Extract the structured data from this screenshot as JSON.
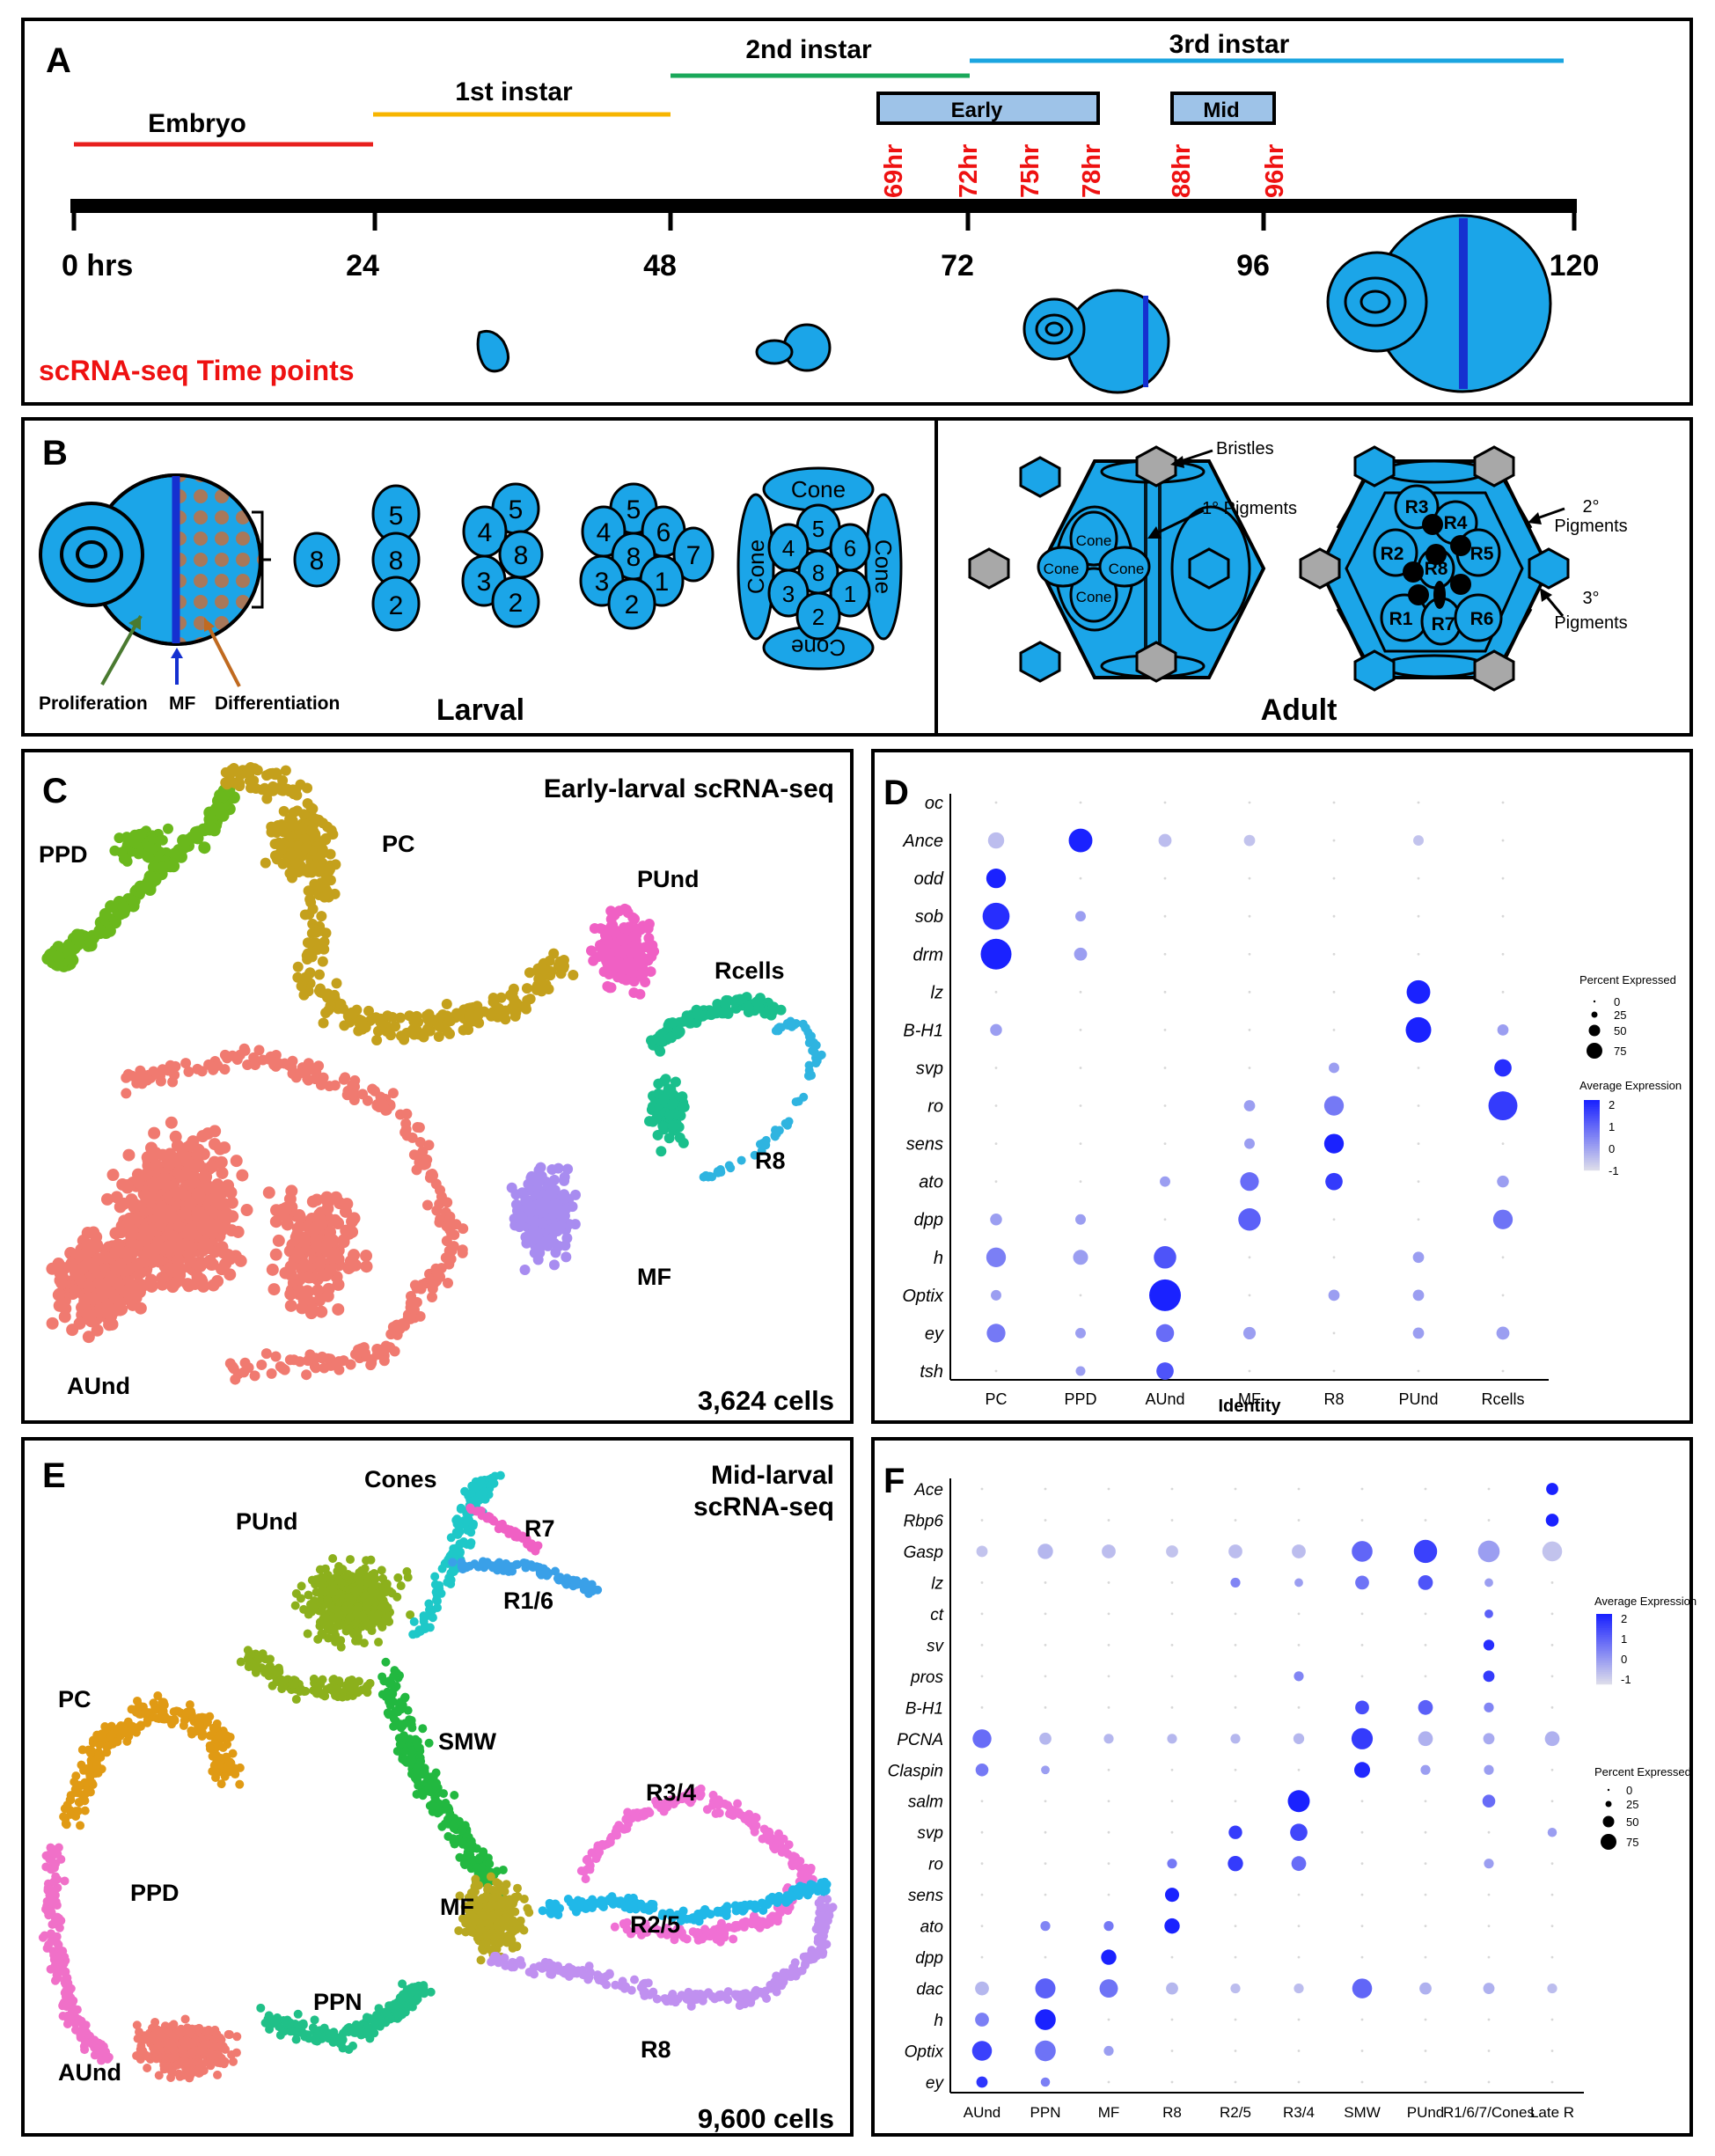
{
  "colors": {
    "embryo": "#e8201e",
    "instar1": "#f7b500",
    "instar2": "#1aa85a",
    "instar3": "#1ba5e0",
    "cell": "#1ba5e8",
    "mf": "#1530d0",
    "red_label": "#ee1111",
    "timebox": "#9ec3e8",
    "pigment_grey": "#a8a8a8",
    "dot_hi": "#1a22ff",
    "dot_lo": "#dcdcea",
    "AUnd": "#f07a70",
    "PC_early": "#c4a01c",
    "PPD_early": "#6ab81c",
    "PUnd_early": "#f060c4",
    "Rcells": "#1abf8c",
    "R8_early": "#2fb4e0",
    "MF_early": "#a88cf0",
    "PUnd_mid": "#8cb01c",
    "Cones": "#1ec8c8",
    "R7": "#f060c4",
    "R16": "#3aa0e8",
    "PC_mid": "#e09a14",
    "SMW": "#22b840",
    "R34": "#f070d4",
    "R25": "#20b8e8",
    "MF_mid": "#b8a820",
    "PPN": "#20c088",
    "R8_mid": "#c090f0",
    "PPD_mid": "#f070c8"
  },
  "panelA": {
    "letter": "A",
    "stages": [
      {
        "label": "Embryo",
        "color_key": "embryo"
      },
      {
        "label": "1st instar",
        "color_key": "instar1"
      },
      {
        "label": "2nd instar",
        "color_key": "instar2"
      },
      {
        "label": "3rd instar",
        "color_key": "instar3"
      }
    ],
    "boxes": [
      "Early",
      "Mid"
    ],
    "timepoints": [
      "69hr",
      "72hr",
      "75hr",
      "78hr",
      "88hr",
      "96hr"
    ],
    "ticks": [
      "0 hrs",
      "24",
      "48",
      "72",
      "96",
      "120"
    ],
    "note": "scRNA-seq Time points"
  },
  "panelB": {
    "letter": "B",
    "larval_labels": {
      "proliferation": "Proliferation",
      "mf": "MF",
      "differentiation": "Differentiation",
      "title": "Larval"
    },
    "adult_labels": {
      "bristles": "Bristles",
      "pig1": "1° Pigments",
      "pig2a": "2°",
      "pig2b": "Pigments",
      "pig3a": "3°",
      "pig3b": "Pigments",
      "title": "Adult"
    },
    "cells": {
      "c8": "8",
      "c5": "5",
      "c2": "2",
      "c4": "4",
      "c3": "3",
      "c6": "6",
      "c7": "7",
      "c1": "1",
      "cone": "Cone"
    },
    "rcells": [
      "R1",
      "R2",
      "R3",
      "R4",
      "R5",
      "R6",
      "R7",
      "R8"
    ]
  },
  "panelC": {
    "letter": "C",
    "title": "Early-larval scRNA-seq",
    "count": "3,624 cells",
    "clusters": {
      "PPD": "PPD",
      "PC": "PC",
      "PUnd": "PUnd",
      "Rcells": "Rcells",
      "R8": "R8",
      "MF": "MF",
      "AUnd": "AUnd"
    }
  },
  "panelD": {
    "letter": "D",
    "genes": [
      "oc",
      "Ance",
      "odd",
      "sob",
      "drm",
      "lz",
      "B-H1",
      "svp",
      "ro",
      "sens",
      "ato",
      "dpp",
      "h",
      "Optix",
      "ey",
      "tsh"
    ],
    "identities": [
      "PC",
      "PPD",
      "AUnd",
      "MF",
      "R8",
      "PUnd",
      "Rcells"
    ],
    "xlabel": "Identity",
    "legend_pct_title": "Percent Expressed",
    "legend_pct": [
      "0",
      "25",
      "50",
      "75"
    ],
    "legend_avg_title": "Average Expression",
    "legend_avg": [
      "2",
      "1",
      "0",
      "-1"
    ],
    "dots": [
      [
        0,
        0,
        0,
        0,
        0,
        0,
        0
      ],
      [
        15,
        40,
        8,
        5,
        0,
        4,
        0
      ],
      [
        25,
        0,
        0,
        0,
        0,
        0,
        0
      ],
      [
        55,
        4,
        0,
        0,
        0,
        0,
        0
      ],
      [
        75,
        8,
        0,
        0,
        0,
        0,
        0
      ],
      [
        0,
        0,
        0,
        0,
        0,
        40,
        0
      ],
      [
        6,
        0,
        0,
        0,
        0,
        48,
        5
      ],
      [
        0,
        0,
        0,
        0,
        4,
        0,
        18
      ],
      [
        0,
        0,
        0,
        5,
        25,
        0,
        65
      ],
      [
        0,
        0,
        0,
        4,
        25,
        0,
        0
      ],
      [
        0,
        0,
        4,
        22,
        18,
        0,
        6
      ],
      [
        6,
        4,
        0,
        35,
        0,
        0,
        25
      ],
      [
        25,
        12,
        35,
        0,
        0,
        5,
        0
      ],
      [
        4,
        0,
        80,
        0,
        5,
        5,
        0
      ],
      [
        22,
        4,
        20,
        7,
        0,
        5,
        8
      ],
      [
        0,
        3,
        18,
        0,
        0,
        0,
        0
      ]
    ],
    "expr": [
      [
        0,
        2,
        0,
        0,
        0,
        0,
        0
      ],
      [
        -0.5,
        2,
        -0.5,
        -0.6,
        -1,
        -0.6,
        -1
      ],
      [
        2,
        0,
        0,
        0,
        0,
        0,
        0
      ],
      [
        1.8,
        0,
        0,
        0,
        0,
        0,
        0
      ],
      [
        2,
        0,
        0,
        0,
        0,
        0,
        0
      ],
      [
        0,
        0,
        0,
        0,
        0,
        2,
        0
      ],
      [
        0,
        0,
        0,
        0,
        0,
        2,
        0
      ],
      [
        0,
        0,
        0,
        0,
        0,
        0,
        1.8
      ],
      [
        0,
        0,
        0,
        0,
        0.6,
        0,
        1.6
      ],
      [
        0,
        0,
        0,
        0,
        2,
        0,
        0
      ],
      [
        0,
        0,
        0,
        0.8,
        1.6,
        0,
        0
      ],
      [
        0,
        0,
        0,
        1,
        0,
        0,
        0.7
      ],
      [
        0.5,
        0,
        1.2,
        0,
        0,
        0,
        0
      ],
      [
        0,
        0,
        2,
        0,
        0,
        0,
        0
      ],
      [
        0.6,
        0,
        0.8,
        0,
        0,
        0,
        0
      ],
      [
        0,
        0,
        1.2,
        0,
        0,
        0,
        0
      ]
    ],
    "col_index": {
      "oc": 1,
      "Ance": 1
    }
  },
  "panelE": {
    "letter": "E",
    "title1": "Mid-larval",
    "title2": "scRNA-seq",
    "count": "9,600 cells",
    "clusters": {
      "Cones": "Cones",
      "R7": "R7",
      "PUnd": "PUnd",
      "R16": "R1/6",
      "PC": "PC",
      "SMW": "SMW",
      "R34": "R3/4",
      "PPD": "PPD",
      "R25": "R2/5",
      "MF": "MF",
      "PPN": "PPN",
      "AUnd": "AUnd",
      "R8": "R8"
    }
  },
  "panelF": {
    "letter": "F",
    "genes": [
      "Ace",
      "Rbp6",
      "Gasp",
      "lz",
      "ct",
      "sv",
      "pros",
      "B-H1",
      "PCNA",
      "Claspin",
      "salm",
      "svp",
      "ro",
      "sens",
      "ato",
      "dpp",
      "dac",
      "h",
      "Optix",
      "ey"
    ],
    "identities": [
      "AUnd",
      "PPN",
      "MF",
      "R8",
      "R2/5",
      "R3/4",
      "SMW",
      "PUnd",
      "R1/6/7/Cones",
      "Late R"
    ],
    "legend_avg_title": "Average Expression",
    "legend_avg": [
      "2",
      "1",
      "0",
      "-1"
    ],
    "legend_pct_title": "Percent Expressed",
    "legend_pct": [
      "0",
      "25",
      "50",
      "75"
    ],
    "dots": [
      [
        0,
        0,
        0,
        0,
        0,
        0,
        0,
        0,
        0,
        10
      ],
      [
        0,
        0,
        0,
        0,
        0,
        0,
        0,
        0,
        0,
        12
      ],
      [
        8,
        20,
        15,
        10,
        15,
        15,
        45,
        60,
        50,
        40
      ],
      [
        0,
        0,
        0,
        0,
        5,
        3,
        15,
        18,
        3,
        0
      ],
      [
        0,
        0,
        0,
        0,
        0,
        0,
        0,
        0,
        3,
        0
      ],
      [
        0,
        0,
        0,
        0,
        0,
        0,
        0,
        0,
        7,
        0
      ],
      [
        0,
        0,
        0,
        0,
        0,
        5,
        0,
        0,
        8,
        0
      ],
      [
        0,
        0,
        0,
        0,
        0,
        0,
        15,
        18,
        5,
        0
      ],
      [
        35,
        10,
        5,
        5,
        5,
        7,
        48,
        18,
        8,
        18
      ],
      [
        12,
        3,
        0,
        0,
        0,
        0,
        22,
        5,
        5,
        0
      ],
      [
        0,
        0,
        0,
        0,
        0,
        52,
        0,
        0,
        12,
        0
      ],
      [
        0,
        0,
        0,
        0,
        14,
        28,
        0,
        0,
        0,
        4
      ],
      [
        0,
        0,
        0,
        5,
        20,
        18,
        0,
        0,
        5,
        0
      ],
      [
        0,
        0,
        0,
        16,
        0,
        0,
        0,
        0,
        0,
        0
      ],
      [
        0,
        5,
        5,
        20,
        0,
        0,
        0,
        0,
        0,
        0
      ],
      [
        0,
        0,
        20,
        0,
        0,
        0,
        0,
        0,
        0,
        0
      ],
      [
        15,
        42,
        33,
        10,
        5,
        5,
        40,
        10,
        8,
        5
      ],
      [
        15,
        45,
        0,
        0,
        0,
        0,
        0,
        0,
        0,
        0
      ],
      [
        40,
        45,
        5,
        0,
        0,
        0,
        0,
        0,
        0,
        0
      ],
      [
        8,
        4,
        0,
        0,
        0,
        0,
        0,
        0,
        0,
        0
      ]
    ],
    "expr": [
      [
        0,
        0,
        0,
        0,
        0,
        0,
        0,
        0,
        0,
        2
      ],
      [
        0,
        0,
        0,
        0,
        0,
        0,
        0,
        0,
        0,
        2
      ],
      [
        -0.6,
        -0.4,
        -0.5,
        -0.6,
        -0.5,
        -0.5,
        0.9,
        1.5,
        0,
        -0.6
      ],
      [
        0,
        0,
        0,
        0,
        0.4,
        0,
        0.7,
        1.2,
        0,
        0
      ],
      [
        0,
        0,
        0,
        0,
        0,
        0,
        0,
        0,
        1,
        0
      ],
      [
        0,
        0,
        0,
        0,
        0,
        0,
        0,
        0,
        1.8,
        0
      ],
      [
        0,
        0,
        0,
        0,
        0,
        0.4,
        0,
        0,
        1.6,
        0
      ],
      [
        0,
        0,
        0,
        0,
        0,
        0,
        1.3,
        1,
        0.4,
        0
      ],
      [
        0.8,
        -0.4,
        -0.4,
        -0.4,
        -0.4,
        -0.4,
        1.6,
        -0.3,
        -0.2,
        -0.3
      ],
      [
        0.6,
        0,
        0,
        0,
        0,
        0,
        1.9,
        0,
        0,
        0
      ],
      [
        0,
        0,
        0,
        0,
        0,
        2,
        0,
        0,
        0.8,
        0
      ],
      [
        0,
        0,
        0,
        0,
        1.6,
        1.4,
        0,
        0,
        0,
        0
      ],
      [
        0,
        0,
        0,
        0.6,
        1.6,
        0.8,
        0,
        0,
        0,
        0
      ],
      [
        0,
        0,
        0,
        2,
        0,
        0,
        0,
        0,
        0,
        0
      ],
      [
        0,
        0.4,
        0.6,
        2,
        0,
        0,
        0,
        0,
        0,
        0
      ],
      [
        0,
        0,
        2,
        0,
        0,
        0,
        0,
        0,
        0,
        0
      ],
      [
        -0.4,
        1,
        0.7,
        -0.4,
        -0.5,
        -0.5,
        0.9,
        -0.3,
        -0.3,
        -0.5
      ],
      [
        0.5,
        2,
        0,
        0,
        0,
        0,
        0,
        0,
        0,
        0
      ],
      [
        1.5,
        0.7,
        0,
        0,
        0,
        0,
        0,
        0,
        0,
        0
      ],
      [
        1.7,
        0.5,
        0,
        0,
        0,
        0,
        0,
        0,
        0,
        0
      ]
    ]
  }
}
